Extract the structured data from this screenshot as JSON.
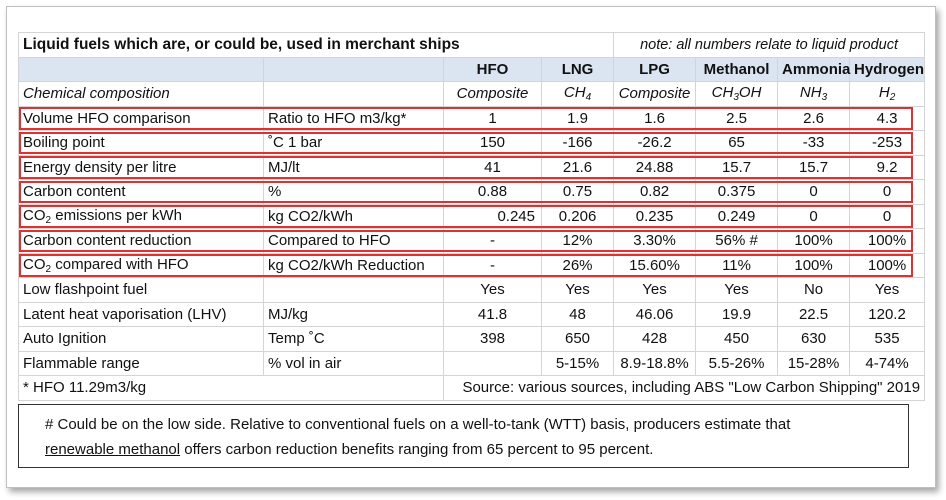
{
  "title": "Liquid fuels which are, or could be, used in merchant ships",
  "note": "note: all numbers relate to liquid product",
  "fuels": [
    "HFO",
    "LNG",
    "LPG",
    "Methanol",
    "Ammonia",
    "Hydrogen"
  ],
  "composition": {
    "label": "Chemical composition",
    "values": [
      {
        "base": "Composite",
        "sub1": "",
        "mid": "",
        "sub2": ""
      },
      {
        "base": "CH",
        "sub1": "4",
        "mid": "",
        "sub2": ""
      },
      {
        "base": "Composite",
        "sub1": "",
        "mid": "",
        "sub2": ""
      },
      {
        "base": "CH",
        "sub1": "3",
        "mid": "OH",
        "sub2": ""
      },
      {
        "base": "NH",
        "sub1": "3",
        "mid": "",
        "sub2": ""
      },
      {
        "base": "H",
        "sub1": "2",
        "mid": "",
        "sub2": ""
      }
    ]
  },
  "rows": [
    {
      "label": "Volume HFO comparison",
      "unit": "Ratio to HFO m3/kg*",
      "values": [
        "1",
        "1.9",
        "1.6",
        "2.5",
        "2.6",
        "4.3"
      ]
    },
    {
      "label": "Boiling point",
      "unit": "˚C 1 bar",
      "values": [
        "150",
        "-166",
        "-26.2",
        "65",
        "-33",
        "-253"
      ]
    },
    {
      "label": "Energy density per litre",
      "unit": "MJ/lt",
      "values": [
        "41",
        "21.6",
        "24.88",
        "15.7",
        "15.7",
        "9.2"
      ]
    },
    {
      "label": "Carbon content",
      "unit": "%",
      "values": [
        "0.88",
        "0.75",
        "0.82",
        "0.375",
        "0",
        "0"
      ]
    },
    {
      "label_pre": "CO",
      "label_sub": "2",
      "label_post": " emissions per kWh",
      "unit": "kg CO2/kWh",
      "values": [
        "0.245",
        "0.206",
        "0.235",
        "0.249",
        "0",
        "0"
      ]
    },
    {
      "label": "Carbon content reduction",
      "unit": "Compared to HFO",
      "values": [
        "-",
        "12%",
        "3.30%",
        "56% #",
        "100%",
        "100%"
      ]
    },
    {
      "label_pre": "CO",
      "label_sub": "2",
      "label_post": " compared with HFO",
      "unit": "kg CO2/kWh Reduction",
      "values": [
        "-",
        "26%",
        "15.60%",
        "11%",
        "100%",
        "100%"
      ]
    },
    {
      "label": "Low flashpoint fuel",
      "unit": "",
      "values": [
        "Yes",
        "Yes",
        "Yes",
        "Yes",
        "No",
        "Yes"
      ]
    },
    {
      "label": "Latent heat vaporisation (LHV)",
      "unit": "MJ/kg",
      "values": [
        "41.8",
        "48",
        "46.06",
        "19.9",
        "22.5",
        "120.2"
      ]
    },
    {
      "label": "Auto Ignition",
      "unit": "Temp ˚C",
      "values": [
        "398",
        "650",
        "428",
        "450",
        "630",
        "535"
      ]
    },
    {
      "label": "Flammable range",
      "unit": "% vol in air",
      "values": [
        "",
        "5-15%",
        "8.9-18.8%",
        "5.5-26%",
        "15-28%",
        "4-74%"
      ]
    }
  ],
  "footnote": "* HFO 11.29m3/kg",
  "source": "Source: various sources, including ABS \"Low Carbon Shipping\" 2019",
  "bottom_note": {
    "line1": "# Could be on the low side. Relative to conventional fuels on a well-to-tank (WTT) basis, producers estimate that",
    "link": "renewable methanol",
    "line2_rest": " offers carbon reduction benefits ranging from 65 percent to 95 percent."
  },
  "highlight_color": "#e03131",
  "header_bg": "#dbe5f1"
}
